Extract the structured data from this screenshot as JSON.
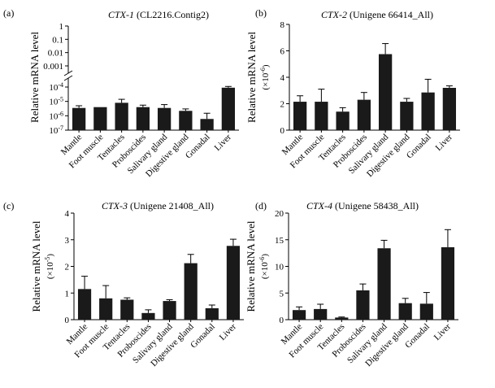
{
  "figure_labels": [
    "(a)",
    "(b)",
    "(c)",
    "(d)"
  ],
  "chart_data": [
    {
      "type": "bar",
      "panel": "(a)",
      "title_gene": "CTX-1",
      "title_rest": " (CL2216.Contig2)",
      "ylabel": "Relative mRNA level",
      "yscale": "log-broken",
      "upper_ticks": [
        "1",
        "0.1",
        "0.01",
        "0.001"
      ],
      "lower_ticks": [
        "10",
        "10",
        "10",
        "10"
      ],
      "lower_tick_exps": [
        "-4",
        "-5",
        "-6",
        "-7"
      ],
      "categories": [
        "Mantle",
        "Foot muscle",
        "Tentacles",
        "Proboscides",
        "Salivary gland",
        "Digestive gland",
        "Gonadal",
        "Liver"
      ],
      "values": [
        3.5e-06,
        4e-06,
        8e-06,
        4e-06,
        3.5e-06,
        2.2e-06,
        6e-07,
        9e-05
      ],
      "errors": [
        1.5e-06,
        0,
        6e-06,
        1.5e-06,
        2.5e-06,
        8e-07,
        9e-07,
        2e-05
      ],
      "ylim": [
        1e-07,
        0.0001
      ]
    },
    {
      "type": "bar",
      "panel": "(b)",
      "title_gene": "CTX-2",
      "title_rest": " (Unigene 66414_All)",
      "ylabel": "Relative mRNA level",
      "yunit_base": "×10",
      "yunit_exp": "-6",
      "categories": [
        "Mantle",
        "Foot muscle",
        "Tentacles",
        "Proboscides",
        "Salivary gland",
        "Digestive gland",
        "Gonadal",
        "Liver"
      ],
      "values": [
        2.15,
        2.15,
        1.4,
        2.3,
        5.75,
        2.15,
        2.85,
        3.2
      ],
      "errors": [
        0.45,
        0.95,
        0.3,
        0.55,
        0.8,
        0.25,
        1.0,
        0.15
      ],
      "ylim": [
        0,
        8
      ],
      "ticks": [
        0,
        2,
        4,
        6,
        8
      ]
    },
    {
      "type": "bar",
      "panel": "(c)",
      "title_gene": "CTX-3",
      "title_rest": " (Unigene 21408_All)",
      "ylabel": "Relative mRNA level",
      "yunit_base": "×10",
      "yunit_exp": "-5",
      "categories": [
        "Mantle",
        "Foot muscle",
        "Tentacles",
        "Proboscides",
        "Salivary gland",
        "Digestive gland",
        "Gonadal",
        "Liver"
      ],
      "values": [
        1.15,
        0.8,
        0.75,
        0.25,
        0.7,
        2.12,
        0.43,
        2.77
      ],
      "errors": [
        0.48,
        0.48,
        0.07,
        0.12,
        0.05,
        0.33,
        0.12,
        0.25
      ],
      "ylim": [
        0,
        4
      ],
      "ticks": [
        0,
        1,
        2,
        3,
        4
      ]
    },
    {
      "type": "bar",
      "panel": "(d)",
      "title_gene": "CTX-4",
      "title_rest": " (Unigene 58438_All)",
      "ylabel": "Relative mRNA level",
      "yunit_base": "×10",
      "yunit_exp": "-6",
      "categories": [
        "Mantle",
        "Foot muscle",
        "Tentacles",
        "Proboscides",
        "Salivary gland",
        "Digestive gland",
        "Gonadal",
        "Liver"
      ],
      "values": [
        1.8,
        2.0,
        0.4,
        5.5,
        13.4,
        3.1,
        3.0,
        13.6
      ],
      "errors": [
        0.6,
        0.9,
        0.1,
        1.2,
        1.5,
        0.9,
        2.1,
        3.3
      ],
      "ylim": [
        0,
        20
      ],
      "ticks": [
        0,
        5,
        10,
        15,
        20
      ]
    }
  ]
}
